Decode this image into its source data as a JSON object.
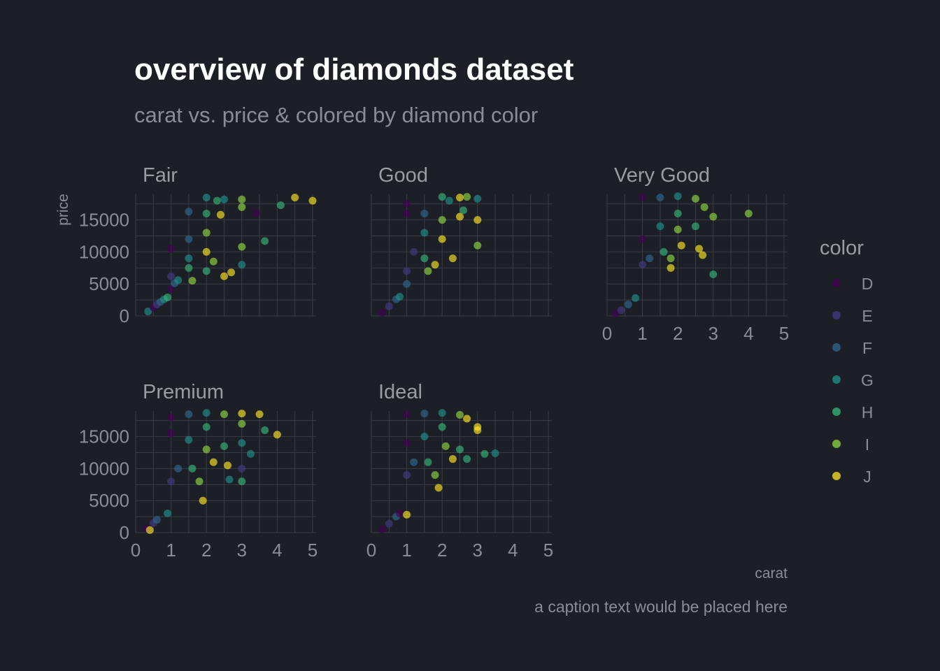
{
  "chart_data": {
    "type": "scatter",
    "title": "overview of diamonds dataset",
    "subtitle": "carat vs. price & colored by diamond color",
    "xlabel": "carat",
    "ylabel": "price",
    "caption": "a caption text would be placed here",
    "xlim": [
      0,
      5.1
    ],
    "ylim": [
      0,
      19000
    ],
    "x_ticks": [
      0,
      1,
      2,
      3,
      4,
      5
    ],
    "y_ticks": [
      0,
      5000,
      10000,
      15000
    ],
    "grid": true,
    "legend": {
      "title": "color",
      "position": "right",
      "entries": [
        {
          "label": "D",
          "color": "#440154"
        },
        {
          "label": "E",
          "color": "#443983"
        },
        {
          "label": "F",
          "color": "#31688e"
        },
        {
          "label": "G",
          "color": "#21918c"
        },
        {
          "label": "H",
          "color": "#35b779"
        },
        {
          "label": "I",
          "color": "#90d743"
        },
        {
          "label": "J",
          "color": "#fde725"
        }
      ]
    },
    "facets": [
      {
        "name": "Fair",
        "points": [
          {
            "color": "G",
            "x": 0.35,
            "y": 700
          },
          {
            "color": "D",
            "x": 0.5,
            "y": 1300
          },
          {
            "color": "E",
            "x": 0.6,
            "y": 1800
          },
          {
            "color": "F",
            "x": 0.7,
            "y": 2200
          },
          {
            "color": "G",
            "x": 0.8,
            "y": 2600
          },
          {
            "color": "H",
            "x": 0.9,
            "y": 2900
          },
          {
            "color": "D",
            "x": 1.0,
            "y": 4200
          },
          {
            "color": "D",
            "x": 1.0,
            "y": 10500
          },
          {
            "color": "E",
            "x": 1.0,
            "y": 6200
          },
          {
            "color": "F",
            "x": 1.1,
            "y": 5100
          },
          {
            "color": "G",
            "x": 1.2,
            "y": 5600
          },
          {
            "color": "F",
            "x": 1.5,
            "y": 16300
          },
          {
            "color": "F",
            "x": 1.5,
            "y": 12000
          },
          {
            "color": "G",
            "x": 1.5,
            "y": 9000
          },
          {
            "color": "H",
            "x": 1.5,
            "y": 7500
          },
          {
            "color": "I",
            "x": 1.6,
            "y": 5500
          },
          {
            "color": "G",
            "x": 2.0,
            "y": 18500
          },
          {
            "color": "H",
            "x": 2.0,
            "y": 16000
          },
          {
            "color": "I",
            "x": 2.0,
            "y": 13000
          },
          {
            "color": "J",
            "x": 2.0,
            "y": 10000
          },
          {
            "color": "H",
            "x": 2.0,
            "y": 7000
          },
          {
            "color": "I",
            "x": 2.2,
            "y": 8500
          },
          {
            "color": "H",
            "x": 2.3,
            "y": 18000
          },
          {
            "color": "J",
            "x": 2.4,
            "y": 15800
          },
          {
            "color": "G",
            "x": 2.5,
            "y": 18200
          },
          {
            "color": "J",
            "x": 2.5,
            "y": 6200
          },
          {
            "color": "J",
            "x": 2.7,
            "y": 6800
          },
          {
            "color": "I",
            "x": 3.0,
            "y": 18200
          },
          {
            "color": "I",
            "x": 3.0,
            "y": 17000
          },
          {
            "color": "I",
            "x": 3.0,
            "y": 10800
          },
          {
            "color": "G",
            "x": 3.0,
            "y": 8000
          },
          {
            "color": "D",
            "x": 3.4,
            "y": 16100
          },
          {
            "color": "H",
            "x": 3.65,
            "y": 11700
          },
          {
            "color": "H",
            "x": 4.1,
            "y": 17300
          },
          {
            "color": "J",
            "x": 4.5,
            "y": 18500
          },
          {
            "color": "J",
            "x": 5.0,
            "y": 18000
          }
        ]
      },
      {
        "name": "Good",
        "points": [
          {
            "color": "D",
            "x": 0.3,
            "y": 500
          },
          {
            "color": "E",
            "x": 0.5,
            "y": 1500
          },
          {
            "color": "F",
            "x": 0.7,
            "y": 2600
          },
          {
            "color": "G",
            "x": 0.8,
            "y": 3000
          },
          {
            "color": "D",
            "x": 1.0,
            "y": 16000
          },
          {
            "color": "D",
            "x": 1.0,
            "y": 17500
          },
          {
            "color": "E",
            "x": 1.0,
            "y": 7000
          },
          {
            "color": "F",
            "x": 1.0,
            "y": 5000
          },
          {
            "color": "E",
            "x": 1.2,
            "y": 10000
          },
          {
            "color": "F",
            "x": 1.5,
            "y": 16000
          },
          {
            "color": "G",
            "x": 1.5,
            "y": 13000
          },
          {
            "color": "H",
            "x": 1.5,
            "y": 9000
          },
          {
            "color": "I",
            "x": 1.6,
            "y": 7000
          },
          {
            "color": "J",
            "x": 1.8,
            "y": 8000
          },
          {
            "color": "H",
            "x": 2.0,
            "y": 18600
          },
          {
            "color": "I",
            "x": 2.0,
            "y": 15000
          },
          {
            "color": "J",
            "x": 2.0,
            "y": 12000
          },
          {
            "color": "G",
            "x": 2.2,
            "y": 18000
          },
          {
            "color": "J",
            "x": 2.3,
            "y": 9000
          },
          {
            "color": "J",
            "x": 2.5,
            "y": 18500
          },
          {
            "color": "J",
            "x": 2.5,
            "y": 15500
          },
          {
            "color": "H",
            "x": 2.6,
            "y": 16500
          },
          {
            "color": "I",
            "x": 2.7,
            "y": 18600
          },
          {
            "color": "G",
            "x": 3.0,
            "y": 18300
          },
          {
            "color": "J",
            "x": 3.0,
            "y": 15000
          },
          {
            "color": "I",
            "x": 3.0,
            "y": 11000
          }
        ]
      },
      {
        "name": "Very Good",
        "points": [
          {
            "color": "D",
            "x": 0.25,
            "y": 400
          },
          {
            "color": "E",
            "x": 0.4,
            "y": 900
          },
          {
            "color": "F",
            "x": 0.6,
            "y": 1800
          },
          {
            "color": "G",
            "x": 0.8,
            "y": 2800
          },
          {
            "color": "D",
            "x": 1.0,
            "y": 18500
          },
          {
            "color": "D",
            "x": 1.0,
            "y": 12000
          },
          {
            "color": "E",
            "x": 1.0,
            "y": 8000
          },
          {
            "color": "F",
            "x": 1.2,
            "y": 9000
          },
          {
            "color": "F",
            "x": 1.5,
            "y": 18500
          },
          {
            "color": "G",
            "x": 1.5,
            "y": 14000
          },
          {
            "color": "H",
            "x": 1.6,
            "y": 10000
          },
          {
            "color": "I",
            "x": 1.8,
            "y": 9000
          },
          {
            "color": "J",
            "x": 1.8,
            "y": 7500
          },
          {
            "color": "G",
            "x": 2.0,
            "y": 18700
          },
          {
            "color": "H",
            "x": 2.0,
            "y": 16000
          },
          {
            "color": "I",
            "x": 2.0,
            "y": 13500
          },
          {
            "color": "J",
            "x": 2.1,
            "y": 11000
          },
          {
            "color": "I",
            "x": 2.5,
            "y": 18300
          },
          {
            "color": "H",
            "x": 2.5,
            "y": 14000
          },
          {
            "color": "J",
            "x": 2.6,
            "y": 10500
          },
          {
            "color": "J",
            "x": 2.7,
            "y": 9500
          },
          {
            "color": "I",
            "x": 2.75,
            "y": 17000
          },
          {
            "color": "H",
            "x": 3.0,
            "y": 6500
          },
          {
            "color": "I",
            "x": 3.0,
            "y": 15500
          },
          {
            "color": "I",
            "x": 4.0,
            "y": 16000
          }
        ]
      },
      {
        "name": "Premium",
        "points": [
          {
            "color": "D",
            "x": 0.3,
            "y": 600
          },
          {
            "color": "J",
            "x": 0.4,
            "y": 400
          },
          {
            "color": "E",
            "x": 0.5,
            "y": 1500
          },
          {
            "color": "F",
            "x": 0.6,
            "y": 2000
          },
          {
            "color": "G",
            "x": 0.9,
            "y": 3000
          },
          {
            "color": "D",
            "x": 1.0,
            "y": 15500
          },
          {
            "color": "D",
            "x": 1.0,
            "y": 18000
          },
          {
            "color": "E",
            "x": 1.0,
            "y": 8000
          },
          {
            "color": "F",
            "x": 1.2,
            "y": 10000
          },
          {
            "color": "F",
            "x": 1.5,
            "y": 18500
          },
          {
            "color": "G",
            "x": 1.5,
            "y": 14500
          },
          {
            "color": "H",
            "x": 1.6,
            "y": 10000
          },
          {
            "color": "I",
            "x": 1.8,
            "y": 8000
          },
          {
            "color": "J",
            "x": 1.9,
            "y": 5000
          },
          {
            "color": "G",
            "x": 2.0,
            "y": 18700
          },
          {
            "color": "H",
            "x": 2.0,
            "y": 16500
          },
          {
            "color": "I",
            "x": 2.0,
            "y": 13000
          },
          {
            "color": "J",
            "x": 2.2,
            "y": 11000
          },
          {
            "color": "I",
            "x": 2.5,
            "y": 18500
          },
          {
            "color": "H",
            "x": 2.5,
            "y": 13500
          },
          {
            "color": "J",
            "x": 2.6,
            "y": 10500
          },
          {
            "color": "G",
            "x": 2.65,
            "y": 8300
          },
          {
            "color": "J",
            "x": 3.0,
            "y": 18600
          },
          {
            "color": "I",
            "x": 3.0,
            "y": 17000
          },
          {
            "color": "G",
            "x": 3.0,
            "y": 14000
          },
          {
            "color": "H",
            "x": 3.0,
            "y": 8000
          },
          {
            "color": "E",
            "x": 3.0,
            "y": 10000
          },
          {
            "color": "G",
            "x": 3.25,
            "y": 12300
          },
          {
            "color": "J",
            "x": 3.5,
            "y": 18500
          },
          {
            "color": "H",
            "x": 3.65,
            "y": 16000
          },
          {
            "color": "J",
            "x": 4.0,
            "y": 15300
          }
        ]
      },
      {
        "name": "Ideal",
        "points": [
          {
            "color": "D",
            "x": 0.3,
            "y": 500
          },
          {
            "color": "E",
            "x": 0.5,
            "y": 1400
          },
          {
            "color": "F",
            "x": 0.7,
            "y": 2500
          },
          {
            "color": "D",
            "x": 0.8,
            "y": 3000
          },
          {
            "color": "J",
            "x": 1.0,
            "y": 2800
          },
          {
            "color": "D",
            "x": 1.0,
            "y": 18500
          },
          {
            "color": "D",
            "x": 1.0,
            "y": 14000
          },
          {
            "color": "E",
            "x": 1.0,
            "y": 9000
          },
          {
            "color": "F",
            "x": 1.2,
            "y": 11000
          },
          {
            "color": "F",
            "x": 1.5,
            "y": 18600
          },
          {
            "color": "G",
            "x": 1.5,
            "y": 15000
          },
          {
            "color": "H",
            "x": 1.6,
            "y": 11000
          },
          {
            "color": "I",
            "x": 1.8,
            "y": 9000
          },
          {
            "color": "J",
            "x": 1.9,
            "y": 7000
          },
          {
            "color": "G",
            "x": 2.0,
            "y": 18700
          },
          {
            "color": "H",
            "x": 2.0,
            "y": 16500
          },
          {
            "color": "I",
            "x": 2.1,
            "y": 13500
          },
          {
            "color": "J",
            "x": 2.3,
            "y": 11500
          },
          {
            "color": "I",
            "x": 2.5,
            "y": 18400
          },
          {
            "color": "H",
            "x": 2.5,
            "y": 13000
          },
          {
            "color": "J",
            "x": 2.7,
            "y": 17800
          },
          {
            "color": "H",
            "x": 2.7,
            "y": 11500
          },
          {
            "color": "J",
            "x": 3.0,
            "y": 16500
          },
          {
            "color": "J",
            "x": 3.0,
            "y": 16000
          },
          {
            "color": "H",
            "x": 3.2,
            "y": 12300
          },
          {
            "color": "G",
            "x": 3.5,
            "y": 12400
          }
        ]
      }
    ]
  }
}
